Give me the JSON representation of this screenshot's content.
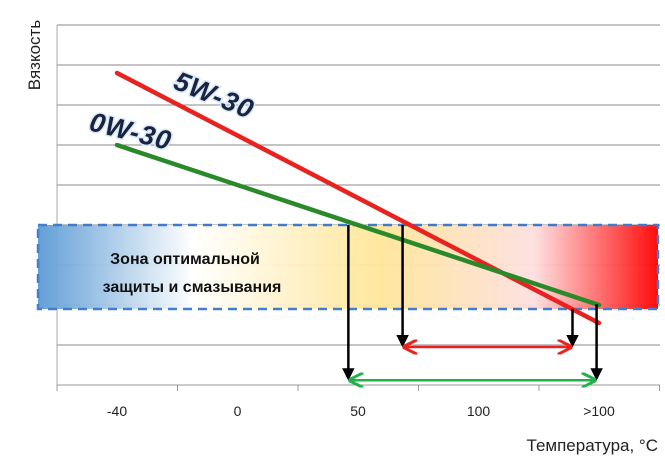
{
  "chart_data": {
    "type": "line",
    "title": "",
    "xlabel": "Температура,  °C",
    "ylabel": "Вязкость",
    "categories": [
      "-40",
      "0",
      "50",
      "100",
      ">100"
    ],
    "ylim": [
      0,
      9
    ],
    "grid": true,
    "series": [
      {
        "name": "5W-30",
        "color": "#e8231f",
        "x": [
          0,
          4.0
        ],
        "y": [
          7.8,
          1.55
        ]
      },
      {
        "name": "0W-30",
        "color": "#2a8a2a",
        "x": [
          0,
          4.0
        ],
        "y": [
          6.0,
          2.0
        ]
      }
    ],
    "zone": {
      "label_line1": "Зона оптимальной",
      "label_line2": "защиты и смазывания",
      "y_range": [
        1.9,
        4.0
      ],
      "colors": [
        "#5b9bd5",
        "#ffffff",
        "#ffe699",
        "#ff0000"
      ]
    },
    "ranges": [
      {
        "series": "5W-30",
        "color": "#e8231f",
        "x": [
          2.37,
          3.78
        ],
        "y": 0.95
      },
      {
        "series": "0W-30",
        "color": "#22b04a",
        "x": [
          1.92,
          3.98
        ],
        "y": 0.12
      }
    ]
  }
}
